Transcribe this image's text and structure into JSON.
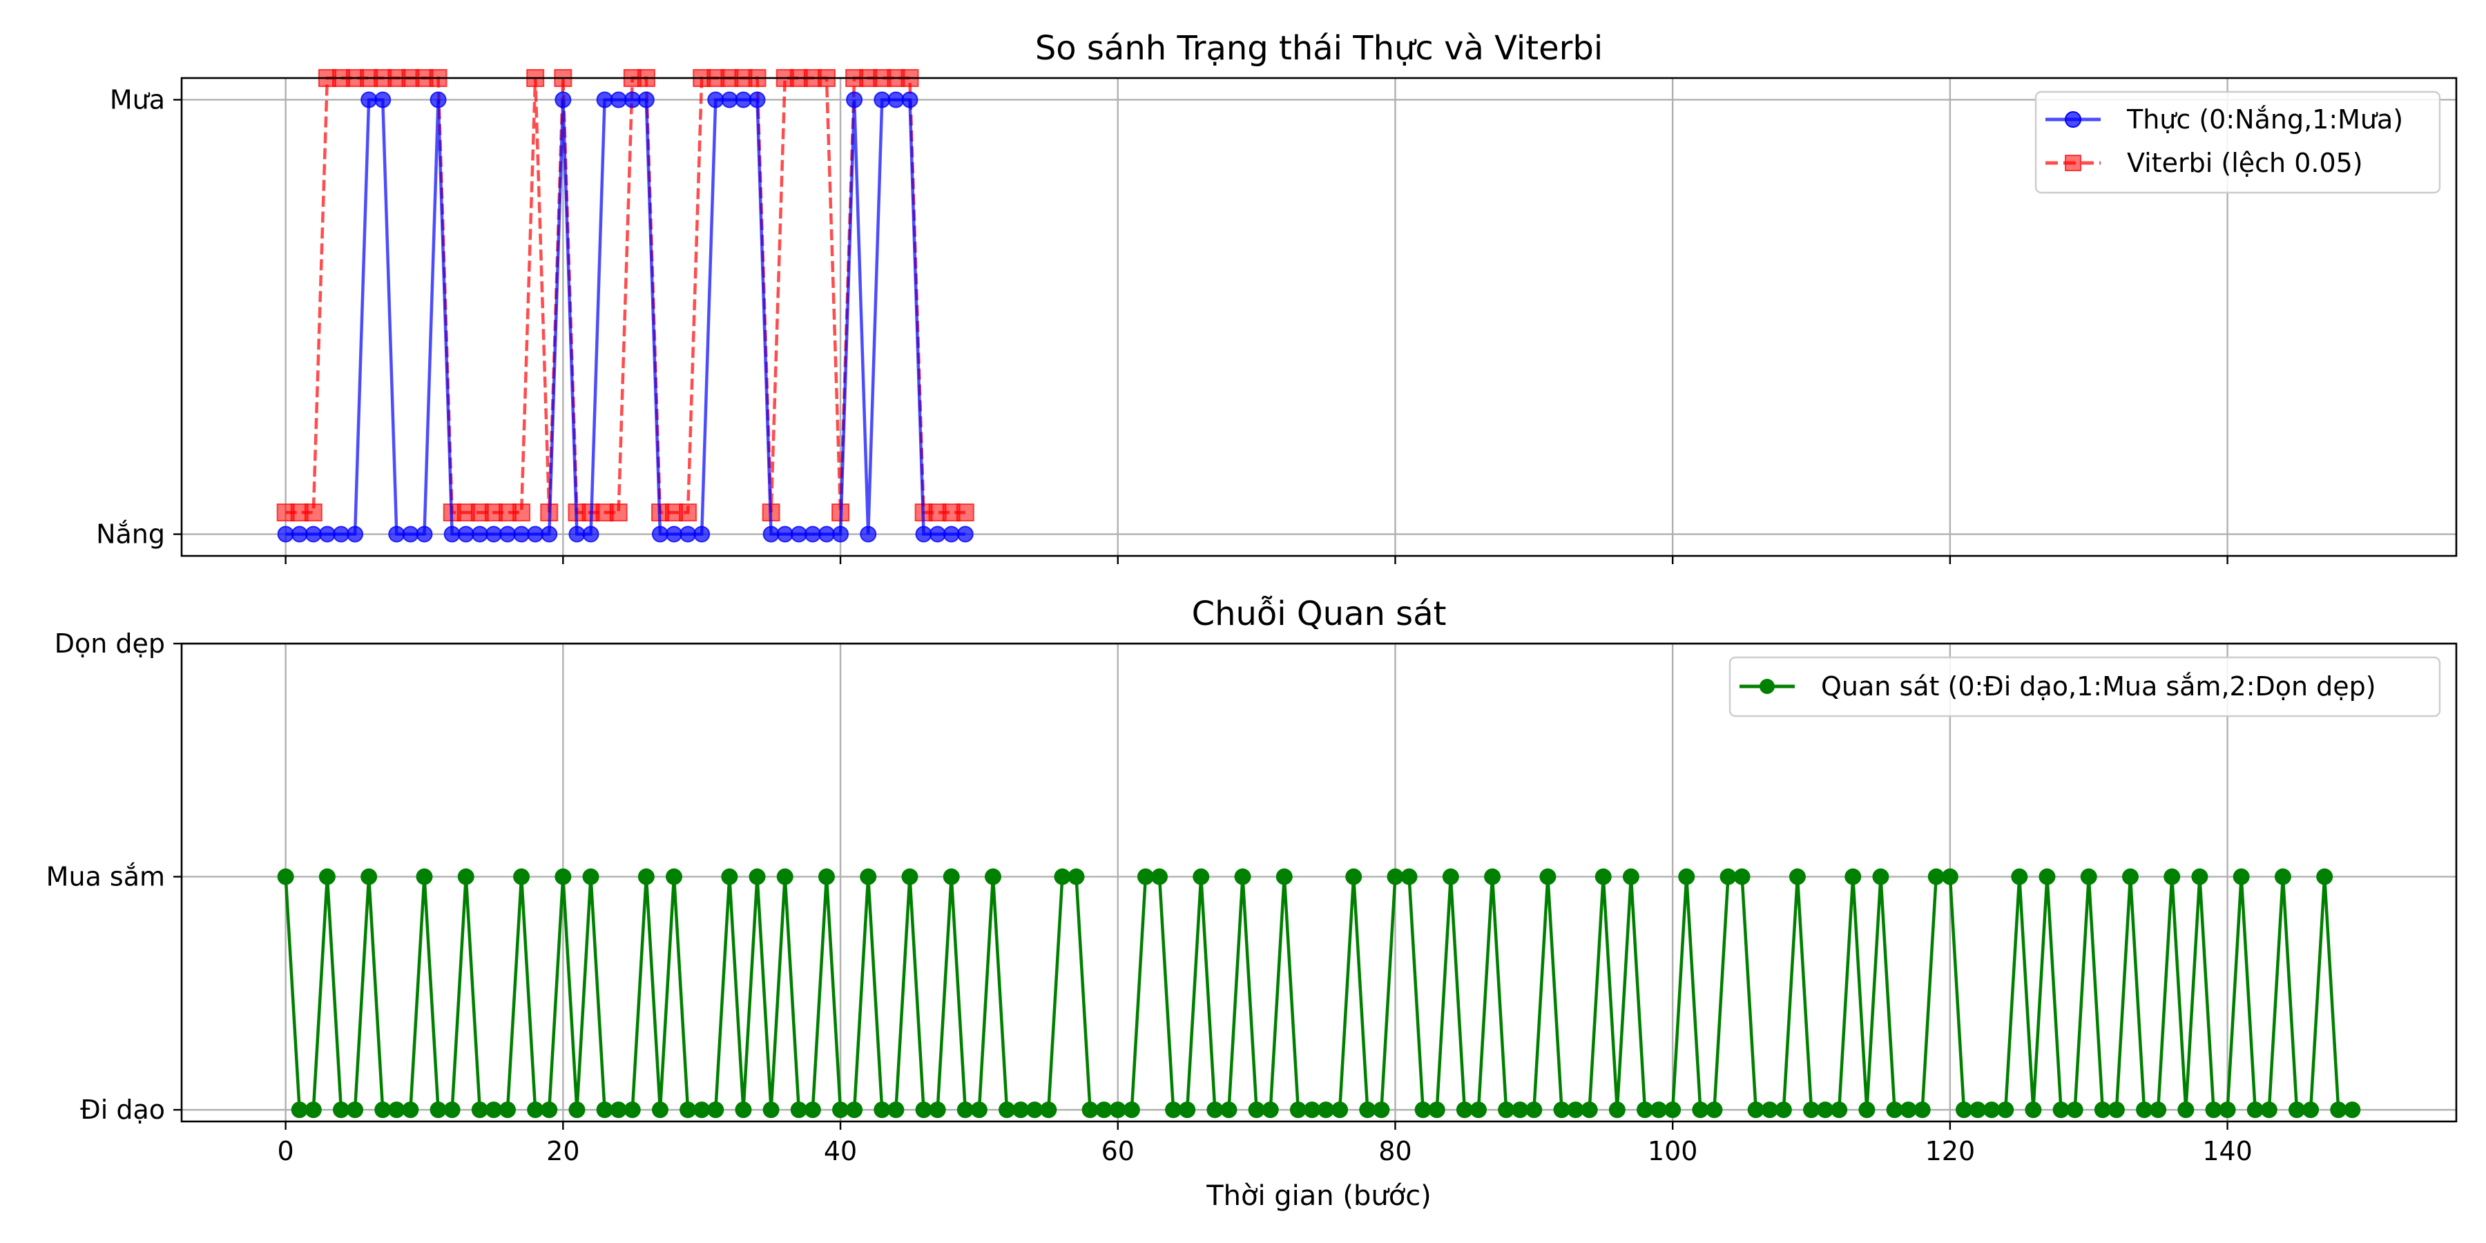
{
  "chart_data": [
    {
      "type": "line",
      "title": "So sánh Trạng thái Thực và Viterbi",
      "xlabel": "",
      "ylabel": "",
      "xlim": [
        -7.5,
        156.5
      ],
      "ylim": [
        -0.05,
        1.05
      ],
      "xticks": [
        0,
        20,
        40,
        60,
        80,
        100,
        120,
        140
      ],
      "xtick_labels_visible": false,
      "yticks": [
        0,
        1
      ],
      "ytick_labels": [
        "Nắng",
        "Mưa"
      ],
      "grid": true,
      "legend_position": "top-right",
      "x": [
        0,
        1,
        2,
        3,
        4,
        5,
        6,
        7,
        8,
        9,
        10,
        11,
        12,
        13,
        14,
        15,
        16,
        17,
        18,
        19,
        20,
        21,
        22,
        23,
        24,
        25,
        26,
        27,
        28,
        29,
        30,
        31,
        32,
        33,
        34,
        35,
        36,
        37,
        38,
        39,
        40,
        41,
        42,
        43,
        44,
        45,
        46,
        47,
        48,
        49
      ],
      "series": [
        {
          "name": "Thực (0:Nắng,1:Mưa)",
          "color": "#0000ff",
          "marker": "circle",
          "linestyle": "solid",
          "values": [
            0,
            0,
            0,
            0,
            0,
            0,
            1,
            1,
            0,
            0,
            0,
            1,
            0,
            0,
            0,
            0,
            0,
            0,
            0,
            0,
            1,
            0,
            0,
            1,
            1,
            1,
            1,
            0,
            0,
            0,
            0,
            1,
            1,
            1,
            1,
            0,
            0,
            0,
            0,
            0,
            0,
            1,
            0,
            1,
            1,
            1,
            0,
            0,
            0,
            0
          ]
        },
        {
          "name": "Viterbi (lệch 0.05)",
          "color": "#ff0000",
          "marker": "square",
          "linestyle": "dashed",
          "offset": 0.05,
          "values": [
            0,
            0,
            0,
            1,
            1,
            1,
            1,
            1,
            1,
            1,
            1,
            1,
            0,
            0,
            0,
            0,
            0,
            0,
            1,
            0,
            1,
            0,
            0,
            0,
            0,
            1,
            1,
            0,
            0,
            0,
            1,
            1,
            1,
            1,
            1,
            0,
            1,
            1,
            1,
            1,
            0,
            1,
            1,
            1,
            1,
            1,
            0,
            0,
            0,
            0
          ]
        }
      ]
    },
    {
      "type": "line",
      "title": "Chuỗi Quan sát",
      "xlabel": "Thời gian (bước)",
      "ylabel": "",
      "xlim": [
        -7.5,
        156.5
      ],
      "ylim": [
        -0.05,
        2.0
      ],
      "xticks": [
        0,
        20,
        40,
        60,
        80,
        100,
        120,
        140
      ],
      "xtick_labels": [
        "0",
        "20",
        "40",
        "60",
        "80",
        "100",
        "120",
        "140"
      ],
      "yticks": [
        0,
        1,
        2
      ],
      "ytick_labels": [
        "Đi dạo",
        "Mua sắm",
        "Dọn dẹp"
      ],
      "grid": true,
      "legend_position": "top-right",
      "series": [
        {
          "name": "Quan sát (0:Đi dạo,1:Mua sắm,2:Dọn dẹp)",
          "color": "#008000",
          "marker": "circle",
          "linestyle": "solid",
          "ones_at": [
            0,
            3,
            6,
            10,
            13,
            17,
            20,
            22,
            26,
            28,
            32,
            34,
            36,
            39,
            42,
            45,
            48,
            51,
            56,
            57,
            62,
            63,
            66,
            69,
            72,
            77,
            80,
            81,
            84,
            87,
            91,
            95,
            97,
            101,
            104,
            105,
            109,
            113,
            115,
            119,
            120,
            125,
            127,
            130,
            133,
            136,
            138,
            141,
            144,
            147
          ],
          "length": 150
        }
      ]
    }
  ]
}
